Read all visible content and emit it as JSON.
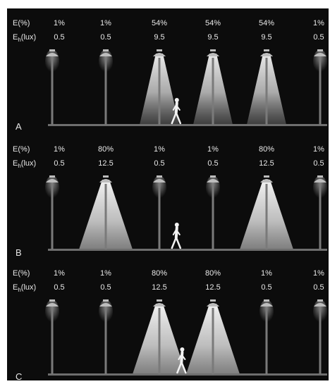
{
  "figure": {
    "panels": [
      {
        "letter": "A",
        "row_label_e": "E(%)",
        "row_label_eh": "E",
        "row_label_eh_sub": "h",
        "row_label_eh_unit": "(lux)",
        "poles": [
          {
            "e": "1%",
            "eh": "0.5",
            "lit": false
          },
          {
            "e": "1%",
            "eh": "0.5",
            "lit": false
          },
          {
            "e": "54%",
            "eh": "9.5",
            "lit": true
          },
          {
            "e": "54%",
            "eh": "9.5",
            "lit": true
          },
          {
            "e": "54%",
            "eh": "9.5",
            "lit": true
          },
          {
            "e": "1%",
            "eh": "0.5",
            "lit": false
          }
        ],
        "pedestrian_position": 2.3
      },
      {
        "letter": "B",
        "row_label_e": "E(%)",
        "row_label_eh": "E",
        "row_label_eh_sub": "h",
        "row_label_eh_unit": "(lux)",
        "poles": [
          {
            "e": "1%",
            "eh": "0.5",
            "lit": false
          },
          {
            "e": "80%",
            "eh": "12.5",
            "lit": true
          },
          {
            "e": "1%",
            "eh": "0.5",
            "lit": false
          },
          {
            "e": "1%",
            "eh": "0.5",
            "lit": false
          },
          {
            "e": "80%",
            "eh": "12.5",
            "lit": true
          },
          {
            "e": "1%",
            "eh": "0.5",
            "lit": false
          }
        ],
        "pedestrian_position": 2.3
      },
      {
        "letter": "C",
        "row_label_e": "E(%)",
        "row_label_eh": "E",
        "row_label_eh_sub": "h",
        "row_label_eh_unit": "(lux)",
        "poles": [
          {
            "e": "1%",
            "eh": "0.5",
            "lit": false
          },
          {
            "e": "1%",
            "eh": "0.5",
            "lit": false
          },
          {
            "e": "80%",
            "eh": "12.5",
            "lit": true
          },
          {
            "e": "80%",
            "eh": "12.5",
            "lit": true
          },
          {
            "e": "1%",
            "eh": "0.5",
            "lit": false
          },
          {
            "e": "1%",
            "eh": "0.5",
            "lit": false
          }
        ],
        "pedestrian_position": 2.4
      }
    ],
    "colors": {
      "background": "#0c0c0c",
      "text": "#e8e8e8",
      "ground": "#6e6e6e",
      "pole": "#7a7a7a",
      "lamp": "#bdbdbd",
      "beam": "#d8d8d8",
      "pedestrian": "#f2f2f2"
    }
  }
}
